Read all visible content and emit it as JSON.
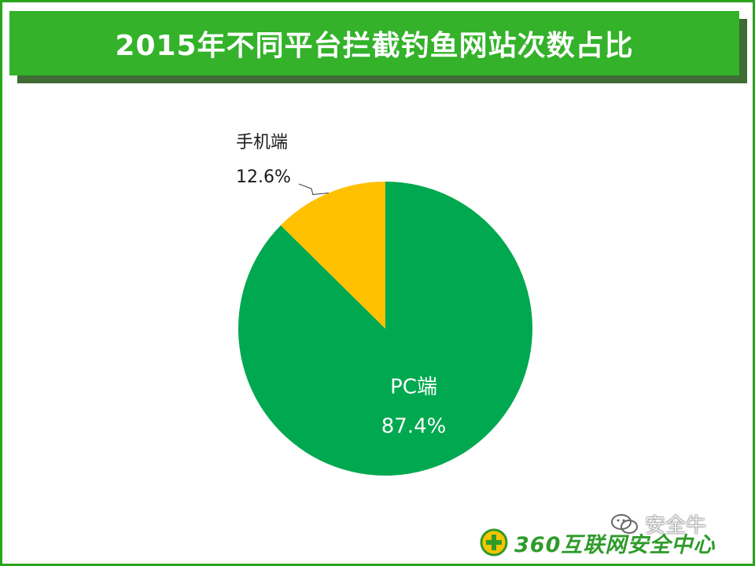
{
  "title": "2015年不同平台拦截钓鱼网站次数占比",
  "chart_data": {
    "type": "pie",
    "title": "2015年不同平台拦截钓鱼网站次数占比",
    "slices": [
      {
        "label": "PC端",
        "value": 87.4,
        "display": "87.4%",
        "color": "#00a84f"
      },
      {
        "label": "手机端",
        "value": 12.6,
        "display": "12.6%",
        "color": "#ffc000"
      }
    ],
    "start_angle_deg": 0,
    "direction": "clockwise"
  },
  "colors": {
    "title_bar": "#33b22a",
    "frame": "#2aa51d"
  },
  "logo": {
    "text": "360互联网安全中心",
    "icon": "360-shield-icon"
  },
  "watermark": {
    "text": "安全牛",
    "icon": "wechat-icon"
  }
}
